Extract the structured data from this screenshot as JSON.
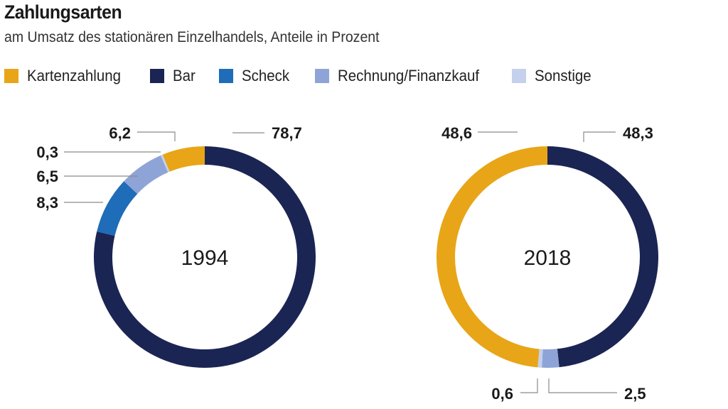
{
  "title": "Zahlungsarten",
  "subtitle": "am Umsatz des stationären Einzelhandels, Anteile in Prozent",
  "legend": [
    {
      "label": "Kartenzahlung",
      "color": "#e8a517"
    },
    {
      "label": "Bar",
      "color": "#1b2553"
    },
    {
      "label": "Scheck",
      "color": "#1f6cb8"
    },
    {
      "label": "Rechnung/Finanzkauf",
      "color": "#8ea4d6"
    },
    {
      "label": "Sonstige",
      "color": "#c5d0ec"
    }
  ],
  "chart_data": [
    {
      "type": "donut",
      "center_label": "1994",
      "slices": [
        {
          "name": "Bar",
          "value": 78.7,
          "label": "78,7"
        },
        {
          "name": "Scheck",
          "value": 8.3,
          "label": "8,3"
        },
        {
          "name": "Rechnung/Finanzkauf",
          "value": 6.5,
          "label": "6,5"
        },
        {
          "name": "Sonstige",
          "value": 0.3,
          "label": "0,3"
        },
        {
          "name": "Kartenzahlung",
          "value": 6.2,
          "label": "6,2"
        }
      ]
    },
    {
      "type": "donut",
      "center_label": "2018",
      "slices": [
        {
          "name": "Bar",
          "value": 48.3,
          "label": "48,3"
        },
        {
          "name": "Rechnung/Finanzkauf",
          "value": 2.5,
          "label": "2,5"
        },
        {
          "name": "Sonstige",
          "value": 0.6,
          "label": "0,6"
        },
        {
          "name": "Kartenzahlung",
          "value": 48.6,
          "label": "48,6"
        }
      ]
    }
  ]
}
